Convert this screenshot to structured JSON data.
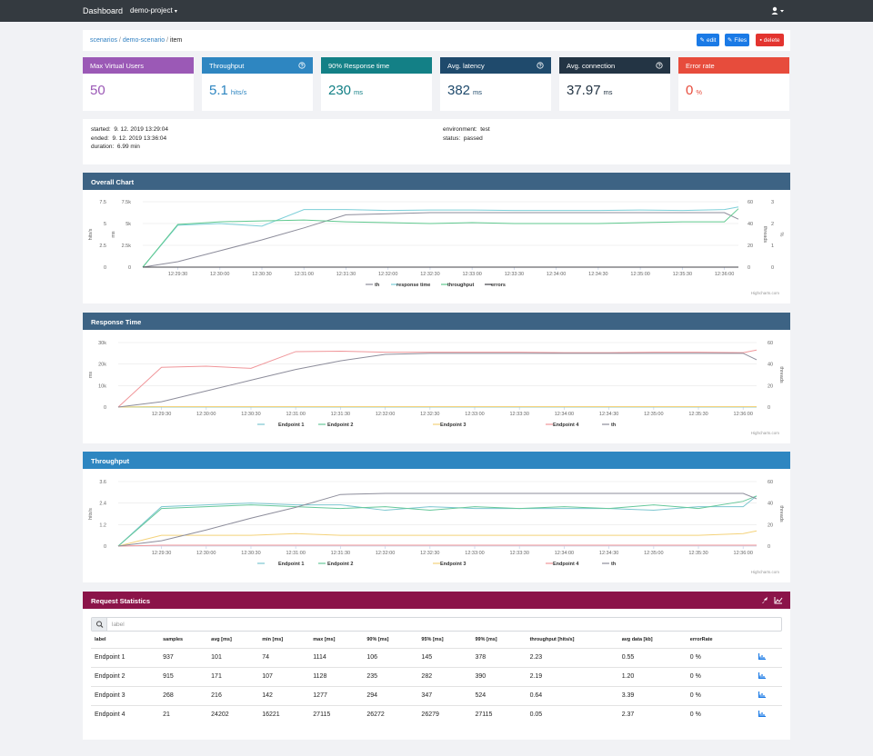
{
  "navbar": {
    "brand": "Dashboard",
    "project": "demo-project"
  },
  "breadcrumb": [
    "scenarios",
    "demo-scenario",
    "item"
  ],
  "buttons": [
    "edit",
    "Files",
    "delete"
  ],
  "cards": [
    {
      "title": "Max Virtual Users",
      "value": "50"
    },
    {
      "title": "Throughput",
      "value": "5.1",
      "unit": "hits/s"
    },
    {
      "title": "90% Response time",
      "value": "230",
      "unit": "ms"
    },
    {
      "title": "Avg. latency",
      "value": "382",
      "unit": "ms"
    },
    {
      "title": "Avg. connection",
      "value": "37.97",
      "unit": "ms"
    },
    {
      "title": "Error rate",
      "value": "0",
      "unit": "%"
    }
  ],
  "info": {
    "left": [
      {
        "label": "started:",
        "value": "9. 12. 2019 13:29:04"
      },
      {
        "label": "ended:",
        "value": "9. 12. 2019 13:36:04"
      },
      {
        "label": "duration:",
        "value": "6.99 min"
      }
    ],
    "right": [
      {
        "label": "environment:",
        "value": "test"
      },
      {
        "label": "status:",
        "value": "passed"
      }
    ]
  },
  "charts": [
    {
      "title": "Overall Chart",
      "type": "line",
      "credit": "Highcharts.com",
      "x": [
        "12:29:05",
        "12:29:30",
        "12:30:00",
        "12:30:30",
        "12:31:00",
        "12:31:30",
        "12:32:00",
        "12:32:30",
        "12:33:00",
        "12:33:30",
        "12:34:00",
        "12:34:30",
        "12:35:00",
        "12:35:30",
        "12:36:00",
        "12:36:10"
      ],
      "xlim": [
        "12:29:05",
        "12:36:10"
      ],
      "xticks": [
        "12:29:30",
        "12:30:00",
        "12:30:30",
        "12:31:00",
        "12:31:30",
        "12:32:00",
        "12:32:30",
        "12:33:00",
        "12:33:30",
        "12:34:00",
        "12:34:30",
        "12:35:00",
        "12:35:30",
        "12:36:00"
      ],
      "yaxes": [
        {
          "title": "hits/s",
          "lim": [
            0,
            7.5
          ],
          "ticks": [
            0,
            2.5,
            5,
            7.5
          ]
        },
        {
          "title": "ms",
          "lim": [
            0,
            7500
          ],
          "ticks": [
            0,
            {
              "value": 2500,
              "label": "2.5k"
            },
            {
              "value": 5000,
              "label": "5k"
            },
            {
              "value": 7500,
              "label": "7.5k"
            }
          ]
        },
        {
          "title": "threads",
          "lim": [
            0,
            60
          ],
          "ticks": [
            0,
            20,
            40,
            60
          ]
        },
        {
          "title": "%",
          "lim": [
            0,
            3
          ],
          "ticks": [
            0,
            1,
            2,
            3
          ]
        }
      ],
      "grid": true,
      "series": [
        {
          "name": "th",
          "color": "#8d8d9b",
          "axis": 2,
          "values": [
            0,
            5,
            15,
            25,
            36,
            48,
            49,
            50,
            50,
            50,
            50,
            50,
            50,
            50,
            50,
            44
          ]
        },
        {
          "name": "response time",
          "color": "#7ccfd8",
          "axis": 1,
          "values": [
            0,
            4800,
            5000,
            4700,
            6600,
            6600,
            6500,
            6550,
            6550,
            6500,
            6500,
            6500,
            6550,
            6500,
            6600,
            6900
          ]
        },
        {
          "name": "throughput",
          "color": "#60c98f",
          "axis": 0,
          "values": [
            0,
            4.9,
            5.2,
            5.3,
            5.4,
            5.2,
            5.1,
            5.0,
            5.1,
            5.0,
            5.0,
            5.0,
            5.1,
            5.2,
            5.2,
            6.7
          ]
        },
        {
          "name": "errors",
          "color": "#434348",
          "axis": 3,
          "values": [
            0,
            0,
            0,
            0,
            0,
            0,
            0,
            0,
            0,
            0,
            0,
            0,
            0,
            0,
            0,
            0
          ]
        }
      ]
    },
    {
      "title": "Response Time",
      "type": "line",
      "credit": "Highcharts.com",
      "x": [
        "12:29:01",
        "12:29:30",
        "12:30:00",
        "12:30:30",
        "12:31:00",
        "12:31:30",
        "12:32:00",
        "12:32:30",
        "12:33:00",
        "12:33:30",
        "12:34:00",
        "12:34:30",
        "12:35:00",
        "12:35:30",
        "12:36:00",
        "12:36:09"
      ],
      "xlim": [
        "12:29:01",
        "12:36:09"
      ],
      "xticks": [
        "12:29:30",
        "12:30:00",
        "12:30:30",
        "12:31:00",
        "12:31:30",
        "12:32:00",
        "12:32:30",
        "12:33:00",
        "12:33:30",
        "12:34:00",
        "12:34:30",
        "12:35:00",
        "12:35:30",
        "12:36:00"
      ],
      "yaxes": [
        {
          "title": "ms",
          "lim": [
            0,
            30000
          ],
          "ticks": [
            0,
            {
              "value": 10000,
              "label": "10k"
            },
            {
              "value": 20000,
              "label": "20k"
            },
            {
              "value": 30000,
              "label": "30k"
            }
          ]
        },
        {
          "title": "threads",
          "lim": [
            0,
            60
          ],
          "ticks": [
            0,
            20,
            40,
            60
          ]
        }
      ],
      "grid": true,
      "series": [
        {
          "name": "Endpoint 1",
          "color": "#7cc6d0",
          "axis": 0,
          "values": [
            0,
            100,
            100,
            110,
            100,
            100,
            100,
            100,
            100,
            100,
            100,
            100,
            100,
            100,
            100,
            100
          ]
        },
        {
          "name": "Endpoint 2",
          "color": "#66c89a",
          "axis": 0,
          "values": [
            0,
            170,
            170,
            180,
            170,
            170,
            170,
            170,
            170,
            170,
            170,
            170,
            170,
            170,
            170,
            170
          ]
        },
        {
          "name": "Endpoint 3",
          "color": "#f4d27a",
          "axis": 0,
          "values": [
            0,
            220,
            210,
            220,
            220,
            210,
            220,
            220,
            210,
            220,
            220,
            210,
            220,
            220,
            210,
            220
          ]
        },
        {
          "name": "Endpoint 4",
          "color": "#f0969a",
          "axis": 0,
          "values": [
            0,
            18500,
            19000,
            18000,
            25800,
            26000,
            25500,
            25500,
            25500,
            25500,
            25300,
            25300,
            25500,
            25500,
            25300,
            26500
          ]
        },
        {
          "name": "th",
          "color": "#8d8d9b",
          "axis": 1,
          "values": [
            0,
            5,
            15,
            25,
            35,
            43,
            49,
            50,
            50,
            50,
            50,
            50,
            50,
            50,
            50,
            44
          ]
        }
      ]
    },
    {
      "title": "Throughput",
      "type": "line",
      "credit": "Highcharts.com",
      "x": [
        "12:29:01",
        "12:29:30",
        "12:30:00",
        "12:30:30",
        "12:31:00",
        "12:31:30",
        "12:32:00",
        "12:32:30",
        "12:33:00",
        "12:33:30",
        "12:34:00",
        "12:34:30",
        "12:35:00",
        "12:35:30",
        "12:36:00",
        "12:36:09"
      ],
      "xlim": [
        "12:29:01",
        "12:36:09"
      ],
      "xticks": [
        "12:29:30",
        "12:30:00",
        "12:30:30",
        "12:31:00",
        "12:31:30",
        "12:32:00",
        "12:32:30",
        "12:33:00",
        "12:33:30",
        "12:34:00",
        "12:34:30",
        "12:35:00",
        "12:35:30",
        "12:36:00"
      ],
      "yaxes": [
        {
          "title": "hits/s",
          "lim": [
            0,
            3.6
          ],
          "ticks": [
            0,
            1.2,
            2.4,
            3.6
          ]
        },
        {
          "title": "threads",
          "lim": [
            0,
            60
          ],
          "ticks": [
            0,
            20,
            40,
            60
          ]
        }
      ],
      "grid": true,
      "series": [
        {
          "name": "Endpoint 1",
          "color": "#7cc6d0",
          "axis": 0,
          "values": [
            0,
            2.2,
            2.3,
            2.4,
            2.3,
            2.3,
            2.0,
            2.2,
            2.1,
            2.1,
            2.1,
            2.1,
            2.0,
            2.2,
            2.2,
            2.8
          ]
        },
        {
          "name": "Endpoint 2",
          "color": "#66c89a",
          "axis": 0,
          "values": [
            0,
            2.1,
            2.2,
            2.3,
            2.2,
            2.1,
            2.2,
            2.0,
            2.2,
            2.1,
            2.2,
            2.1,
            2.3,
            2.1,
            2.5,
            2.8
          ]
        },
        {
          "name": "Endpoint 3",
          "color": "#f4d27a",
          "axis": 0,
          "values": [
            0,
            0.6,
            0.6,
            0.6,
            0.7,
            0.6,
            0.6,
            0.6,
            0.6,
            0.6,
            0.6,
            0.6,
            0.6,
            0.6,
            0.7,
            0.85
          ]
        },
        {
          "name": "Endpoint 4",
          "color": "#f0969a",
          "axis": 0,
          "values": [
            0,
            0.05,
            0.05,
            0.05,
            0.05,
            0.05,
            0.05,
            0.05,
            0.05,
            0.05,
            0.05,
            0.05,
            0.05,
            0.05,
            0.05,
            0.05
          ]
        },
        {
          "name": "th",
          "color": "#8d8d9b",
          "axis": 1,
          "values": [
            0,
            5,
            15,
            26,
            36,
            48,
            49,
            49,
            49,
            49,
            49,
            49,
            49,
            49,
            49,
            44
          ]
        }
      ]
    }
  ],
  "stats": {
    "title": "Request Statistics",
    "search_placeholder": "label",
    "header": [
      "label",
      "samples",
      "avg [ms]",
      "min [ms]",
      "max [ms]",
      "90% [ms]",
      "95% [ms]",
      "99% [ms]",
      "throughput [hits/s]",
      "avg data [kb]",
      "errorRate"
    ],
    "rows": [
      [
        "Endpoint 1",
        "937",
        "101",
        "74",
        "1114",
        "106",
        "145",
        "378",
        "2.23",
        "0.55",
        "0 %"
      ],
      [
        "Endpoint 2",
        "915",
        "171",
        "107",
        "1128",
        "235",
        "282",
        "390",
        "2.19",
        "1.20",
        "0 %"
      ],
      [
        "Endpoint 3",
        "268",
        "216",
        "142",
        "1277",
        "294",
        "347",
        "524",
        "0.64",
        "3.39",
        "0 %"
      ],
      [
        "Endpoint 4",
        "21",
        "24202",
        "16221",
        "27115",
        "26272",
        "26279",
        "27115",
        "0.05",
        "2.37",
        "0 %"
      ]
    ]
  }
}
